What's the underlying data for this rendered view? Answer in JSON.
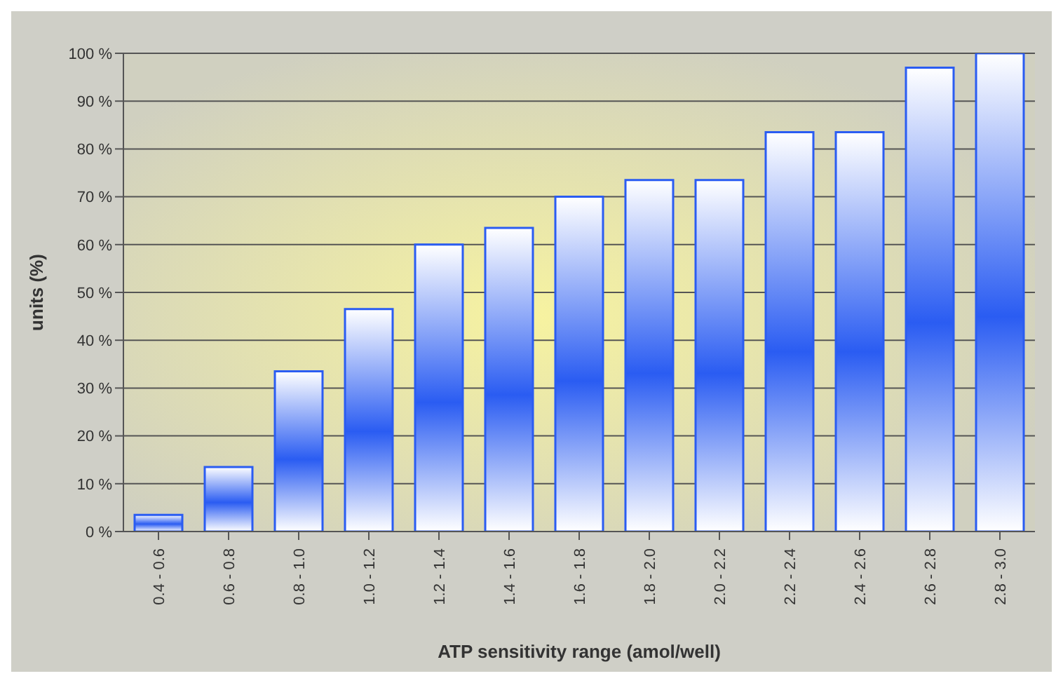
{
  "chart_data": {
    "type": "bar",
    "xlabel": "ATP sensitivity range (amol/well)",
    "ylabel": "units (%)",
    "categories": [
      "0.4 - 0.6",
      "0.6 - 0.8",
      "0.8 - 1.0",
      "1.0 - 1.2",
      "1.2 - 1.4",
      "1.4 - 1.6",
      "1.6 - 1.8",
      "1.8 - 2.0",
      "2.0 - 2.2",
      "2.2 - 2.4",
      "2.4 - 2.6",
      "2.6 - 2.8",
      "2.8 - 3.0"
    ],
    "values": [
      3.5,
      13.5,
      33.5,
      46.5,
      60,
      63.5,
      70,
      73.5,
      73.5,
      83.5,
      83.5,
      97,
      100
    ],
    "color": "#2a5cf2",
    "ylim": [
      0,
      100
    ],
    "yticks": [
      {
        "value": 0,
        "label": "0 %"
      },
      {
        "value": 10,
        "label": "10 %"
      },
      {
        "value": 20,
        "label": "20 %"
      },
      {
        "value": 30,
        "label": "30 %"
      },
      {
        "value": 40,
        "label": "40 %"
      },
      {
        "value": 50,
        "label": "50 %"
      },
      {
        "value": 60,
        "label": "60 %"
      },
      {
        "value": 70,
        "label": "70 %"
      },
      {
        "value": 80,
        "label": "80 %"
      },
      {
        "value": 90,
        "label": "90 %"
      },
      {
        "value": 100,
        "label": "100 %"
      }
    ],
    "grid": "y",
    "legend": false
  }
}
